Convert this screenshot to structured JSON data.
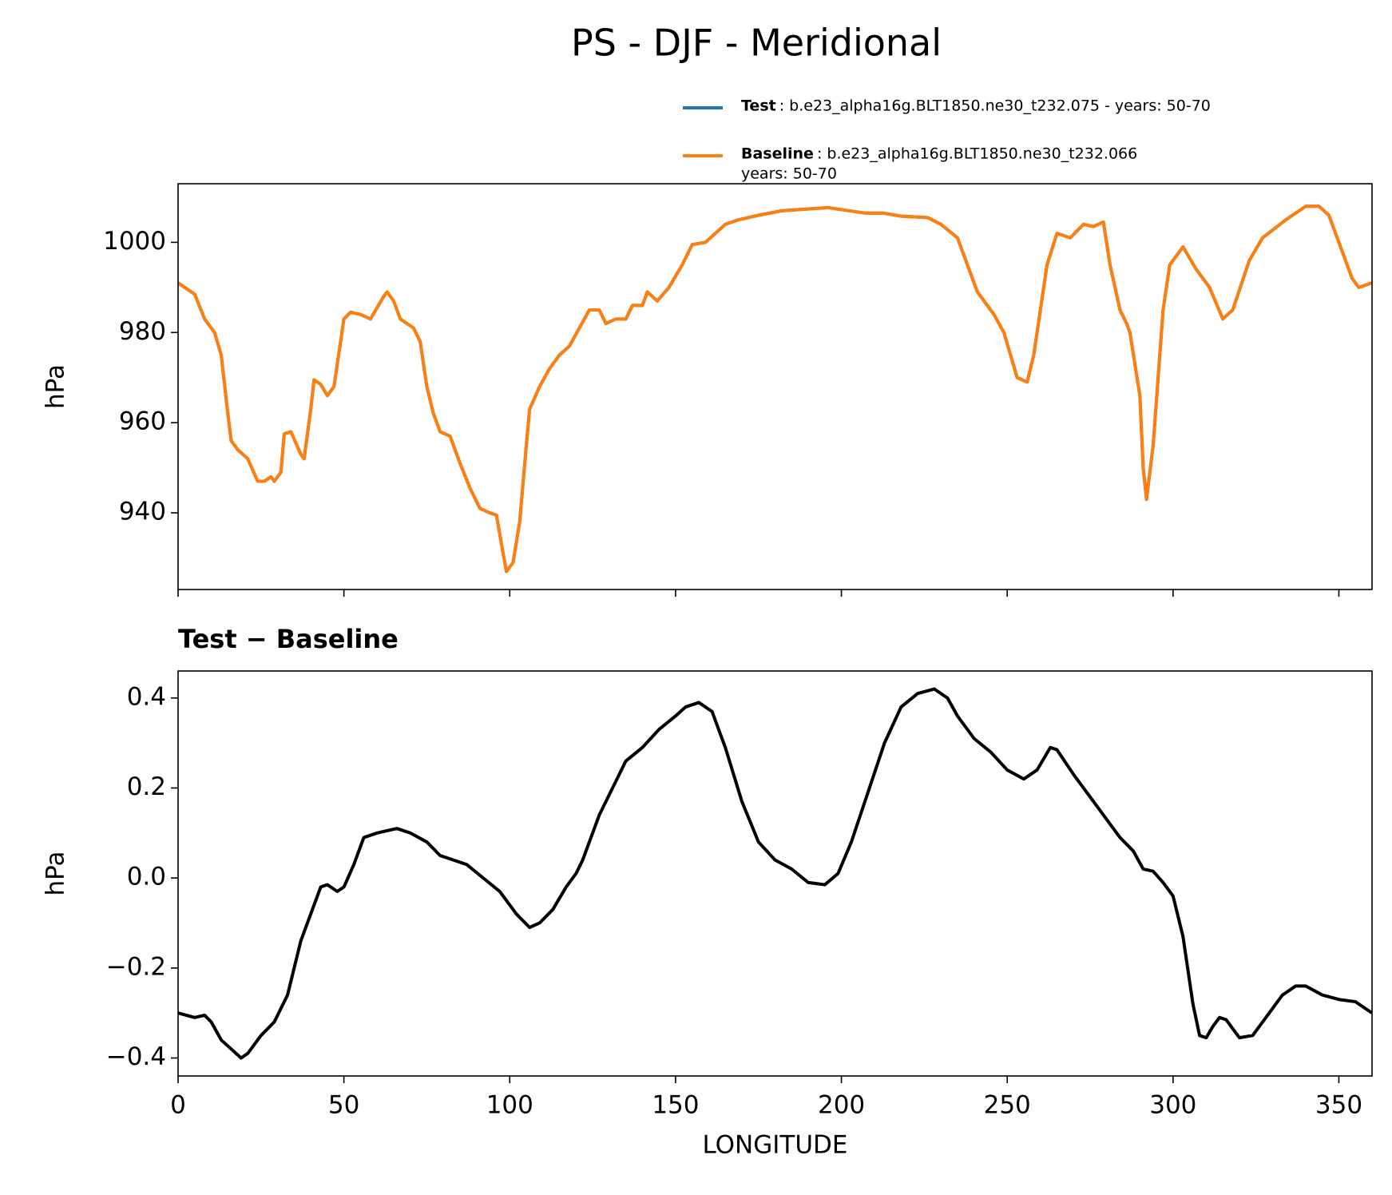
{
  "chart_data": [
    {
      "type": "line",
      "title": "PS - DJF - Meridional",
      "ylabel": "hPa",
      "xlim": [
        0,
        360
      ],
      "xticks": [
        0,
        50,
        100,
        150,
        200,
        250,
        300,
        350
      ],
      "ylim": [
        923,
        1013
      ],
      "yticks": [
        940,
        960,
        980,
        1000
      ],
      "x": [
        0,
        5,
        8,
        11,
        13,
        15,
        16,
        18,
        21,
        24,
        26,
        28,
        29,
        31,
        32,
        34,
        37,
        38,
        40,
        41,
        43,
        45,
        47,
        49,
        50,
        52,
        55,
        58,
        62,
        63,
        65,
        67,
        69,
        71,
        73,
        75,
        77,
        79,
        82,
        85,
        88,
        91,
        94,
        96,
        98,
        99,
        101,
        103,
        105,
        106,
        109,
        112,
        115,
        118,
        121,
        124,
        127,
        129,
        132,
        135,
        137,
        140,
        141.5,
        144.5,
        148,
        152,
        155,
        159,
        165,
        169,
        175,
        182,
        196,
        207,
        212.5,
        218,
        226,
        230,
        235,
        241,
        246,
        249,
        253,
        256,
        258,
        262,
        265,
        269,
        273,
        276,
        279,
        281,
        284,
        286,
        287,
        290,
        291,
        292,
        294,
        297,
        299,
        303,
        307,
        311,
        315,
        318,
        323,
        327,
        334,
        340,
        344,
        347,
        350,
        354,
        356,
        360
      ],
      "series": [
        {
          "name": "Test",
          "description": [
            ": b.e23_alpha16g.BLT1850.ne30_t232.075 - years: 50-70"
          ],
          "color": "#1f77b4",
          "values": [
            991,
            988.5,
            983,
            980,
            975,
            962,
            956,
            954,
            952,
            947,
            947,
            948,
            947,
            949,
            957.5,
            958,
            953,
            952,
            963,
            969.5,
            968.5,
            966,
            968,
            978,
            983,
            984.5,
            984,
            983,
            988,
            989,
            987,
            983,
            982,
            981,
            978,
            968,
            962,
            958,
            957,
            951,
            945.5,
            941,
            940,
            939.5,
            931,
            927,
            929,
            938,
            955,
            963,
            968,
            972,
            975,
            977,
            981,
            985,
            985,
            982,
            983,
            983,
            986,
            986,
            989,
            987,
            990,
            995,
            999.5,
            1000,
            1004,
            1005,
            1006,
            1007,
            1007.7,
            1006.5,
            1006.5,
            1005.8,
            1005.5,
            1004,
            1001,
            989,
            984,
            980,
            970,
            969,
            975,
            995,
            1002,
            1001,
            1004,
            1003.5,
            1004.5,
            995,
            985,
            982,
            980,
            966,
            950,
            943,
            955,
            985,
            995,
            999,
            994,
            990,
            983,
            985,
            996,
            1001,
            1005,
            1008,
            1008,
            1006,
            1000,
            992,
            990,
            991
          ]
        },
        {
          "name": "Baseline",
          "description": [
            ": b.e23_alpha16g.BLT1850.ne30_t232.066",
            "years: 50-70"
          ],
          "color": "#ff7f0e",
          "values": [
            991,
            988.5,
            983,
            980,
            975,
            962,
            956,
            954,
            952,
            947,
            947,
            948,
            947,
            949,
            957.5,
            958,
            953,
            952,
            963,
            969.5,
            968.5,
            966,
            968,
            978,
            983,
            984.5,
            984,
            983,
            988,
            989,
            987,
            983,
            982,
            981,
            978,
            968,
            962,
            958,
            957,
            951,
            945.5,
            941,
            940,
            939.5,
            931,
            927,
            929,
            938,
            955,
            963,
            968,
            972,
            975,
            977,
            981,
            985,
            985,
            982,
            983,
            983,
            986,
            986,
            989,
            987,
            990,
            995,
            999.5,
            1000,
            1004,
            1005,
            1006,
            1007,
            1007.7,
            1006.5,
            1006.5,
            1005.8,
            1005.5,
            1004,
            1001,
            989,
            984,
            980,
            970,
            969,
            975,
            995,
            1002,
            1001,
            1004,
            1003.5,
            1004.5,
            995,
            985,
            982,
            980,
            966,
            950,
            943,
            955,
            985,
            995,
            999,
            994,
            990,
            983,
            985,
            996,
            1001,
            1005,
            1008,
            1008,
            1006,
            1000,
            992,
            990,
            991
          ]
        }
      ]
    },
    {
      "type": "line",
      "title": "Test − Baseline",
      "ylabel": "hPa",
      "xlabel": "LONGITUDE",
      "xlim": [
        0,
        360
      ],
      "xticks": [
        0,
        50,
        100,
        150,
        200,
        250,
        300,
        350
      ],
      "ylim": [
        -0.44,
        0.46
      ],
      "yticks": [
        {
          "value": -0.4,
          "label": "−0.4"
        },
        {
          "value": -0.2,
          "label": "−0.2"
        },
        {
          "value": 0,
          "label": "0.0"
        },
        0.2,
        0.4
      ],
      "x": [
        0,
        5,
        8,
        10,
        13,
        16,
        19,
        21,
        25,
        29,
        33,
        37,
        40,
        43,
        45,
        48,
        50,
        53,
        56,
        60,
        63,
        66,
        70,
        75,
        79,
        83,
        87,
        92,
        97,
        102,
        106,
        109,
        113,
        117,
        120,
        122,
        127,
        131,
        135,
        140,
        145,
        150,
        153,
        157,
        161,
        165,
        170,
        175,
        180,
        185,
        190,
        195,
        199,
        203,
        208,
        213,
        218,
        223,
        228,
        232,
        235,
        240,
        245,
        250,
        255,
        259,
        263,
        265,
        270,
        275,
        280,
        284,
        288,
        291,
        294,
        297,
        300,
        303,
        306,
        308,
        310,
        312,
        314,
        316,
        320,
        324,
        328,
        333,
        337,
        340,
        345,
        350,
        355,
        360
      ],
      "series": [
        {
          "color": "#000000",
          "values": [
            -0.3,
            -0.31,
            -0.305,
            -0.32,
            -0.36,
            -0.38,
            -0.4,
            -0.39,
            -0.35,
            -0.32,
            -0.26,
            -0.14,
            -0.08,
            -0.02,
            -0.015,
            -0.03,
            -0.02,
            0.03,
            0.09,
            0.1,
            0.105,
            0.11,
            0.1,
            0.08,
            0.05,
            0.04,
            0.03,
            0.0,
            -0.03,
            -0.08,
            -0.11,
            -0.1,
            -0.07,
            -0.02,
            0.01,
            0.04,
            0.14,
            0.2,
            0.26,
            0.29,
            0.33,
            0.36,
            0.38,
            0.39,
            0.37,
            0.29,
            0.17,
            0.08,
            0.04,
            0.02,
            -0.01,
            -0.015,
            0.01,
            0.08,
            0.19,
            0.3,
            0.38,
            0.41,
            0.42,
            0.4,
            0.36,
            0.31,
            0.28,
            0.24,
            0.22,
            0.24,
            0.29,
            0.285,
            0.23,
            0.18,
            0.13,
            0.09,
            0.06,
            0.02,
            0.015,
            -0.01,
            -0.04,
            -0.13,
            -0.28,
            -0.35,
            -0.355,
            -0.33,
            -0.31,
            -0.315,
            -0.355,
            -0.35,
            -0.31,
            -0.26,
            -0.24,
            -0.24,
            -0.26,
            -0.27,
            -0.275,
            -0.3
          ]
        }
      ]
    }
  ]
}
